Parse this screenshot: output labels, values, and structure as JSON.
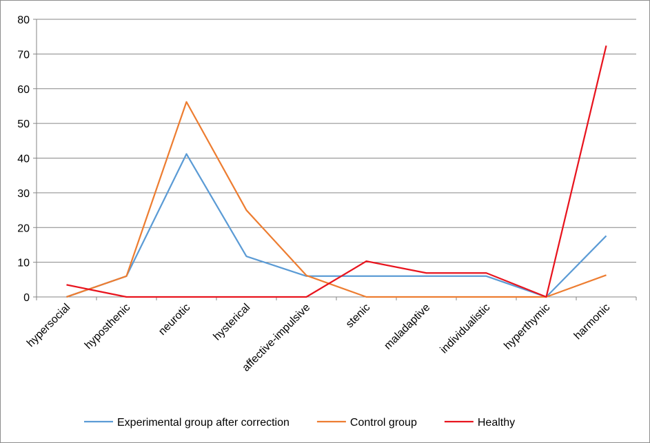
{
  "chart_data": {
    "type": "line",
    "categories": [
      "hypersocial",
      "hyposthenic",
      "neurotic",
      "hysterical",
      "affective-impulsive",
      "stenic",
      "maladaptive",
      "individualistic",
      "hyperthymic",
      "harmonic"
    ],
    "ylim": [
      0,
      80
    ],
    "yticks": [
      0,
      10,
      20,
      30,
      40,
      50,
      60,
      70,
      80
    ],
    "grid": true,
    "legend_position": "bottom",
    "series": [
      {
        "name": "Experimental group after correction",
        "color": "#5b9bd5",
        "values": [
          0,
          6,
          41.2,
          11.7,
          6,
          6,
          6,
          6,
          0,
          17.6
        ]
      },
      {
        "name": "Control group",
        "color": "#ed7d31",
        "values": [
          0,
          6,
          56.2,
          25,
          6.2,
          0,
          0,
          0,
          0,
          6.3
        ]
      },
      {
        "name": "Healthy",
        "color": "#e8141e",
        "values": [
          3.5,
          0,
          0,
          0,
          0,
          10.3,
          6.9,
          6.9,
          0,
          72.4
        ]
      }
    ]
  }
}
